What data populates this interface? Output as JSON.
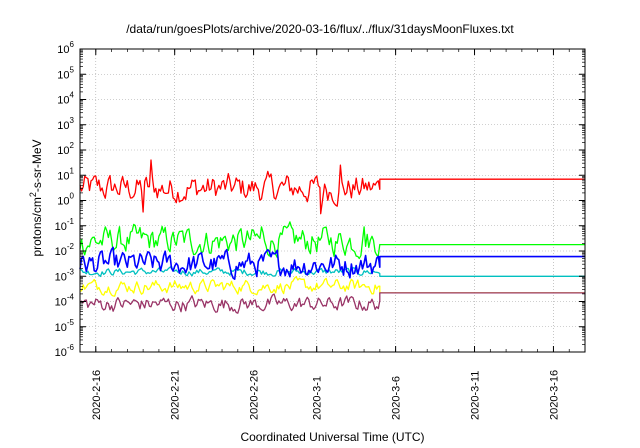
{
  "chart_data": {
    "type": "line",
    "title": "/data/run/goesPlots/archive/2020-03-16/flux/../flux/31daysMoonFluxes.txt",
    "xlabel": "Coordinated Universal Time (UTC)",
    "ylabel": {
      "main": "protons/cm",
      "sup": "2",
      "rest": "-s-sr-MeV"
    },
    "yscale": "log",
    "ylim": [
      1e-06,
      1000000.0
    ],
    "xlim": [
      "2020-02-15",
      "2020-03-18"
    ],
    "grid": true,
    "x_ticks": [
      "2020-2-16",
      "2020-2-21",
      "2020-2-26",
      "2020-3-1",
      "2020-3-6",
      "2020-3-11",
      "2020-3-16"
    ],
    "y_ticks": [
      {
        "base": "10",
        "exp": "6"
      },
      {
        "base": "10",
        "exp": "5"
      },
      {
        "base": "10",
        "exp": "4"
      },
      {
        "base": "10",
        "exp": "3"
      },
      {
        "base": "10",
        "exp": "2"
      },
      {
        "base": "10",
        "exp": "1"
      },
      {
        "base": "10",
        "exp": "0"
      },
      {
        "base": "10",
        "exp": "-1"
      },
      {
        "base": "10",
        "exp": "-2"
      },
      {
        "base": "10",
        "exp": "-3"
      },
      {
        "base": "10",
        "exp": "-4"
      },
      {
        "base": "10",
        "exp": "-5"
      },
      {
        "base": "10",
        "exp": "-6"
      }
    ],
    "data_end": "2020-03-05",
    "series": [
      {
        "color": "#ff0000",
        "noisy": {
          "level": 3.0,
          "spread": 0.45
        },
        "flat_value": 7.0,
        "spikes": [
          {
            "x": "2020-02-19 12:00",
            "y": 40
          },
          {
            "x": "2020-02-19",
            "y": 0.35
          },
          {
            "x": "2020-03-01 06:00",
            "y": 0.3
          },
          {
            "x": "2020-03-02 12:00",
            "y": 25
          }
        ]
      },
      {
        "color": "#00ff00",
        "noisy": {
          "level": 0.025,
          "spread": 0.45
        },
        "flat_value": 0.018,
        "spikes": [
          {
            "x": "2020-02-26 12:00",
            "y": 0.09
          },
          {
            "x": "2020-03-04",
            "y": 0.09
          }
        ]
      },
      {
        "color": "#00c0c0",
        "noisy": {
          "level": 0.0015,
          "spread": 0.12
        },
        "flat_value": 0.001
      },
      {
        "color": "#0000ff",
        "noisy": {
          "level": 0.003,
          "spread": 0.4
        },
        "flat_value": 0.006
      },
      {
        "color": "#ffff00",
        "noisy": {
          "level": 0.0004,
          "spread": 0.22
        },
        "flat_value": 0.00022
      },
      {
        "color": "#993366",
        "noisy": {
          "level": 8e-05,
          "spread": 0.25
        },
        "flat_value": 0.00022
      }
    ]
  }
}
